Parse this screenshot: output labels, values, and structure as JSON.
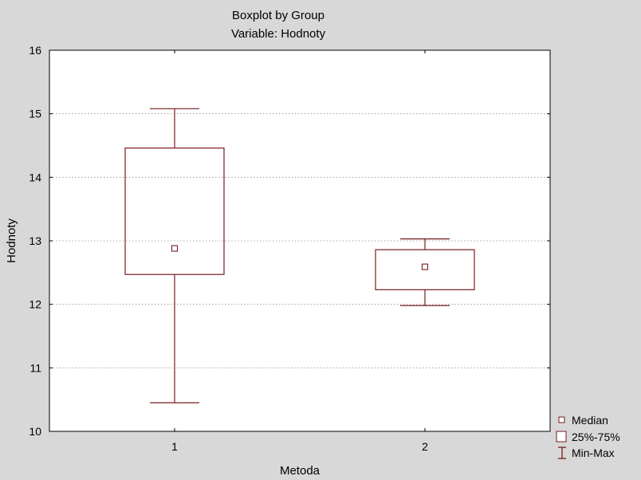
{
  "chart_data": {
    "type": "boxplot",
    "title": "Boxplot by Group",
    "subtitle": "Variable: Hodnoty",
    "xlabel": "Metoda",
    "ylabel": "Hodnoty",
    "ylim": [
      10,
      16
    ],
    "yticks": [
      10,
      11,
      12,
      13,
      14,
      15,
      16
    ],
    "grid": "horizontal dotted",
    "categories": [
      "1",
      "2"
    ],
    "groups": [
      {
        "category": "1",
        "min": 10.45,
        "q1": 12.47,
        "median": 12.88,
        "q3": 14.46,
        "max": 15.08
      },
      {
        "category": "2",
        "min": 11.98,
        "q1": 12.23,
        "median": 12.59,
        "q3": 12.86,
        "max": 13.03
      }
    ],
    "legend": {
      "position": "bottom-right",
      "entries": [
        "Median",
        "25%-75%",
        "Min-Max"
      ]
    },
    "colors": {
      "box": "#7a1b1b",
      "plot_bg": "#ffffff",
      "page_bg": "#d8d8d8",
      "grid": "#909090"
    }
  }
}
